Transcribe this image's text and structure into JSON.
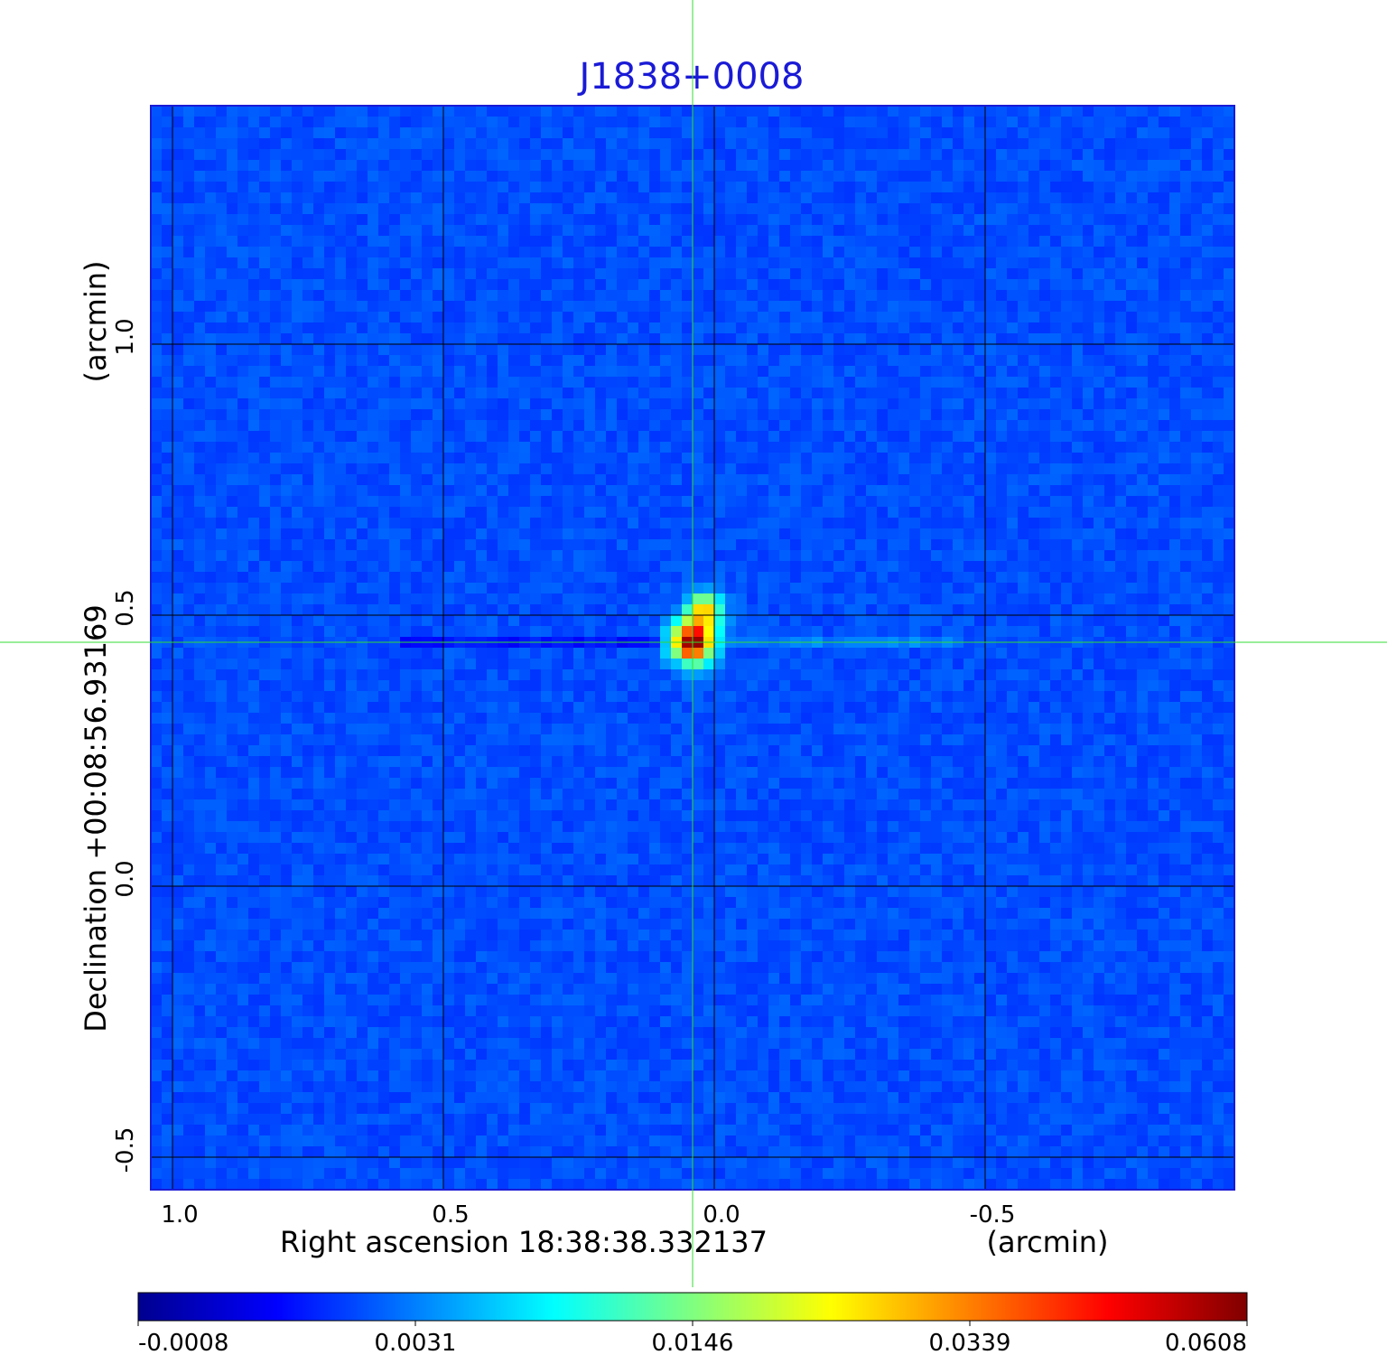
{
  "chart_data": {
    "type": "heatmap",
    "title": "J1838+0008",
    "xlabel": "Right ascension  18:38:38.332137",
    "xunit": "(arcmin)",
    "ylabel": "Declination  +00:08:56.93169",
    "yunit": "(arcmin)",
    "x_range": [
      1.04,
      -0.96
    ],
    "y_range": [
      -0.56,
      1.44
    ],
    "x_ticks": [
      1.0,
      0.5,
      0.0,
      -0.5
    ],
    "x_tick_labels": [
      "1.0",
      "0.5",
      "0.0",
      "-0.5"
    ],
    "y_ticks": [
      1.0,
      0.5,
      0.0,
      -0.5
    ],
    "y_tick_labels": [
      "1.0",
      "0.5",
      "0.0",
      "-0.5"
    ],
    "grid": true,
    "crosshair": {
      "x": 0.04,
      "y": 0.45,
      "color": "#33dd33"
    },
    "source_peak": {
      "x": 0.04,
      "y": 0.45,
      "value": 0.0608
    },
    "colormap": "jet",
    "colorbar": {
      "placement": "bottom",
      "tick_labels": [
        "-0.0008",
        "0.0031",
        "0.0146",
        "0.0339",
        "0.0608"
      ],
      "min": -0.0008,
      "max": 0.0608
    },
    "title_color": "#1a1ad6"
  }
}
